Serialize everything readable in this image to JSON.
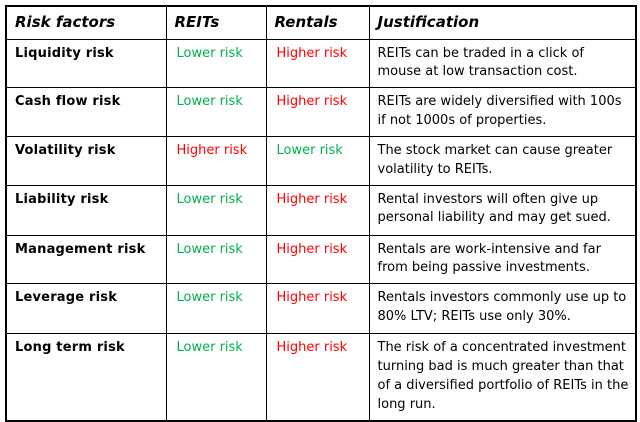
{
  "colors": {
    "lower_risk": "#00b050",
    "higher_risk": "#ff0000",
    "border": "#000000",
    "text": "#000000",
    "background": "#ffffff"
  },
  "table": {
    "headers": [
      "Risk factors",
      "REITs",
      "Rentals",
      "Justification"
    ],
    "rows": [
      {
        "factor": "Liquidity risk",
        "reits": "Lower risk",
        "rentals": "Higher risk",
        "justification": "REITs can be traded in a click of mouse at low transaction cost."
      },
      {
        "factor": "Cash flow risk",
        "reits": "Lower risk",
        "rentals": "Higher risk",
        "justification": "REITs are widely diversified with 100s if not 1000s of properties."
      },
      {
        "factor": "Volatility risk",
        "reits": "Higher risk",
        "rentals": "Lower risk",
        "justification": "The stock market can cause greater volatility to REITs."
      },
      {
        "factor": "Liability risk",
        "reits": "Lower risk",
        "rentals": "Higher risk",
        "justification": "Rental investors will often give up personal liability and may get sued."
      },
      {
        "factor": "Management risk",
        "reits": "Lower risk",
        "rentals": "Higher risk",
        "justification": "Rentals are work-intensive and far from being passive investments."
      },
      {
        "factor": "Leverage risk",
        "reits": "Lower risk",
        "rentals": "Higher risk",
        "justification": "Rentals investors commonly use up to 80% LTV; REITs use only 30%."
      },
      {
        "factor": "Long term risk",
        "reits": "Lower risk",
        "rentals": "Higher risk",
        "justification": "The risk of a concentrated investment turning bad is much greater than that of a diversified portfolio of REITs in the long run."
      }
    ]
  }
}
